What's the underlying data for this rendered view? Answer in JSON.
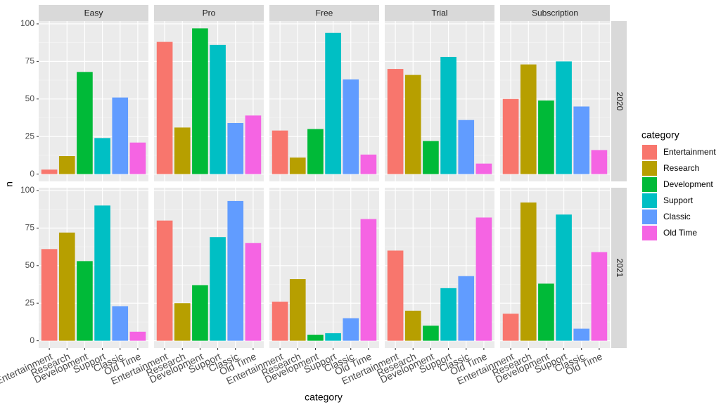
{
  "chart_data": {
    "type": "bar",
    "x_label": "category",
    "y_label": "n",
    "legend_title": "category",
    "categories": [
      "Entertainment",
      "Research",
      "Development",
      "Support",
      "Classic",
      "Old Time"
    ],
    "colors": [
      "#f8766d",
      "#b79f00",
      "#00ba38",
      "#00bfc4",
      "#619cff",
      "#f564e3"
    ],
    "col_facets": [
      "Easy",
      "Pro",
      "Free",
      "Trial",
      "Subscription"
    ],
    "row_facets": [
      "2020",
      "2021"
    ],
    "ylim": [
      -4.85,
      101.85
    ],
    "yticks": [
      0,
      25,
      50,
      75,
      100
    ],
    "grid": true,
    "values": [
      [
        [
          3,
          12,
          68,
          24,
          51,
          21
        ],
        [
          88,
          31,
          97,
          86,
          34,
          39
        ],
        [
          29,
          11,
          30,
          94,
          63,
          13
        ],
        [
          70,
          66,
          22,
          78,
          36,
          7
        ],
        [
          50,
          73,
          49,
          75,
          45,
          16
        ]
      ],
      [
        [
          61,
          72,
          53,
          90,
          23,
          6
        ],
        [
          80,
          25,
          37,
          69,
          93,
          65
        ],
        [
          26,
          41,
          4,
          5,
          15,
          81
        ],
        [
          60,
          20,
          10,
          35,
          43,
          82
        ],
        [
          18,
          92,
          38,
          84,
          8,
          59
        ]
      ]
    ]
  }
}
